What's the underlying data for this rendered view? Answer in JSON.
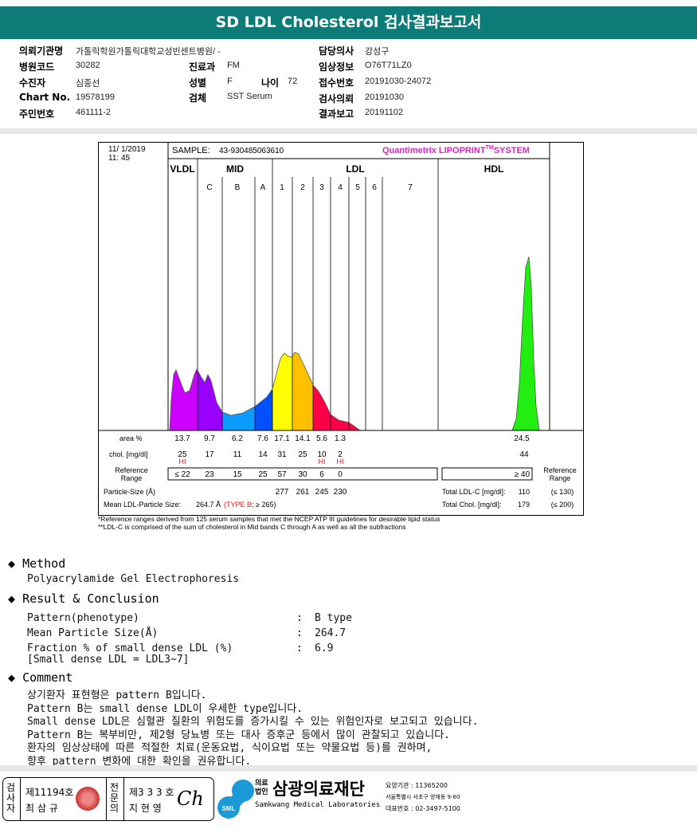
{
  "title": "SD LDL Cholesterol 검사결과보고서",
  "header": {
    "institution_label": "의뢰기관명",
    "institution": "가톨릭학원가톨릭대학교성빈센트병원/ -",
    "code_label": "병원코드",
    "code": "30282",
    "patient_label": "수진자",
    "patient": "심종선",
    "chart_label": "Chart No.",
    "chart": "19578199",
    "id_label": "주민번호",
    "id": "461111-2",
    "dept_label": "진료과",
    "dept": "FM",
    "sex_label": "성별",
    "sex": "F",
    "age_label": "나이",
    "age": "72",
    "specimen_label": "검체",
    "specimen": "SST Serum",
    "doctor_label": "담당의사",
    "doctor": "강성구",
    "clinical_label": "임상정보",
    "clinical": "O76T71LZ0",
    "receipt_label": "접수번호",
    "receipt": "20191030-24072",
    "request_label": "검사의뢰",
    "request": "20191030",
    "report_label": "결과보고",
    "report": "20191102"
  },
  "chart_data": {
    "type": "area",
    "date": "11/ 1/2019",
    "time": "11: 45",
    "sample_label": "SAMPLE:",
    "sample": "43-930485063610",
    "system": "Quantimetrix LIPOPRINT",
    "system_tm": "TM",
    "system_suffix": "SYSTEM",
    "groups": [
      "VLDL",
      "MID",
      "LDL",
      "HDL"
    ],
    "bands": [
      "C",
      "B",
      "A",
      "1",
      "2",
      "3",
      "4",
      "5",
      "6",
      "7"
    ],
    "band_colors": {
      "VLDL": "#cc00ff",
      "C": "#9a00ff",
      "B": "#0a9cff",
      "A": "#0050ff",
      "1": "#ffff00",
      "2": "#ffc000",
      "3": "#ff0048",
      "4": "#ff0048",
      "HDL": "#22ee11"
    },
    "row_labels": {
      "area": "area %",
      "chol": "chol. [mg/dl]",
      "ref1": "Reference",
      "ref2": "Range",
      "size": "Particle-Size (Å)",
      "mean": "Mean LDL-Particle Size:"
    },
    "columns": [
      "VLDL",
      "C",
      "B",
      "A",
      "1",
      "2",
      "3",
      "4"
    ],
    "area_pct": [
      "13.7",
      "9.7",
      "6.2",
      "7.6",
      "17.1",
      "14.1",
      "5.6",
      "1.3"
    ],
    "chol": [
      "25",
      "17",
      "11",
      "14",
      "31",
      "25",
      "10",
      "2"
    ],
    "flags": [
      "HI",
      "",
      "",
      "",
      "",
      "",
      "HI",
      "HI"
    ],
    "ref_range": [
      "≤ 22",
      "23",
      "15",
      "25",
      "57",
      "30",
      "6",
      "0"
    ],
    "particle_size": {
      "1": "277",
      "2": "261",
      "3": "245",
      "4": "230"
    },
    "hdl": {
      "area_pct": "24.5",
      "chol": "44",
      "ref": "≥ 40"
    },
    "mean_size": "264.7 Å",
    "type_label": "TYPE B",
    "type_ref": "; ≥ 265)",
    "type_open": "(",
    "total_ldl_label": "Total LDL-C [mg/dl]:",
    "total_ldl": "110",
    "total_ldl_ref": "(≤ 130)",
    "total_chol_label": "Total Chol. [mg/dl]:",
    "total_chol": "179",
    "total_chol_ref": "(≤ 200)",
    "footnote1": "*Reference ranges derived from 125 serum samples that met the NCEP ATP III guidelines for desirable lipid status",
    "footnote2": "**LDL-C is comprised of the sum of cholesterol in Mid bands C through A as well as all the subfractions"
  },
  "method": {
    "heading": "Method",
    "text": "Polyacrylamide Gel Electrophoresis"
  },
  "result": {
    "heading": "Result & Conclusion",
    "rows": [
      {
        "label": "Pattern(phenotype)",
        "value": "B type"
      },
      {
        "label": "Mean Particle Size(Å)",
        "value": "264.7"
      },
      {
        "label": "Fraction % of small dense LDL (%)",
        "value": "6.9"
      }
    ],
    "note": "[Small dense LDL = LDL3~7]",
    "colon": ":"
  },
  "comment": {
    "heading": "Comment",
    "lines": [
      "상기환자 표현형은 pattern B입니다.",
      "Pattern B는 small dense LDL이 우세한 type입니다.",
      "Small dense LDL은 심혈관 질환의 위험도를 증가시킬 수 있는 위험인자로 보고되고 있습니다.",
      "Pattern B는 복부비만, 제2형 당뇨병 또는 대사 증후군 등에서 많이 관찰되고 있습니다.",
      "환자의 임상상태에 따른 적절한 치료(운동요법, 식이요법 또는 약물요법 등)를 권하며,",
      "향후 pattern 변화에 대한 확인을 권유합니다."
    ]
  },
  "footer": {
    "examiner_label": "검사자",
    "examiner_no": "제11194호",
    "examiner": "최 삼 규",
    "specialist_label": "전문의",
    "specialist_no": "제3 3 3 호",
    "specialist": "지 현 영",
    "org_type": "의료법인",
    "org": "삼광의료재단",
    "org_en": "Samkwang Medical Laboratories",
    "logo": "SML",
    "code": "요양기관 : 11365200",
    "address": "서울특별시 서초구 양재동 9-60",
    "phone": "대표번호 : 02-3497-5100"
  }
}
